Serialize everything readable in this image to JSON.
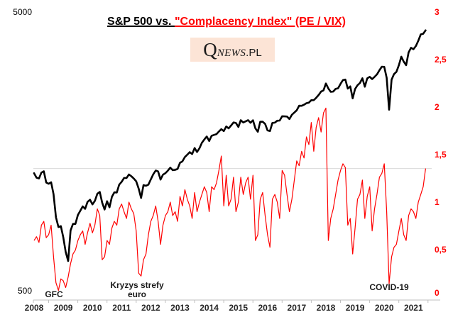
{
  "title": {
    "black_part": "S&P 500 vs. ",
    "red_part": "\"Complacency Index\" (PE / VIX)"
  },
  "logo": {
    "q": "Q",
    "news": "NEWS",
    "pl": ".PL"
  },
  "colors": {
    "sp500_line": "#000000",
    "complacency_line": "#FF0000",
    "title_red": "#FF0000",
    "right_axis_labels": "#FF0000",
    "gridline": "#D9D9D9",
    "axis_line": "#BFBFBF",
    "logo_bg": "#FCE4D6"
  },
  "chart_data": {
    "type": "line",
    "title": "S&P 500 vs. \"Complacency Index\" (PE / VIX)",
    "x_axis": {
      "start_year": 2008,
      "step_months": 1,
      "tick_labels": [
        "2008",
        "2009",
        "2010",
        "2011",
        "2012",
        "2013",
        "2014",
        "2015",
        "2016",
        "2017",
        "2018",
        "2019",
        "2020",
        "2021"
      ]
    },
    "left_axis": {
      "scale": "log",
      "range": [
        500,
        5000
      ],
      "tick_labels": [
        "5000",
        "500"
      ],
      "series": "S&P 500"
    },
    "right_axis": {
      "scale": "linear",
      "range": [
        0,
        3
      ],
      "tick_labels": [
        "3",
        "2,5",
        "2",
        "1,5",
        "1",
        "0,5",
        "0"
      ],
      "series": "Complacency Index (PE / VIX)"
    },
    "reference_line": {
      "axis": "right",
      "value": 1.37
    },
    "grid": "single horizontal reference line only",
    "legend": "none",
    "series": [
      {
        "name": "S&P 500",
        "axis": "left",
        "color": "#000000",
        "values": [
          1378,
          1330,
          1322,
          1385,
          1400,
          1280,
          1267,
          1282,
          1166,
          969,
          896,
          903,
          826,
          735,
          683,
          872,
          919,
          919,
          987,
          1021,
          1057,
          1036,
          1096,
          1115,
          1074,
          1104,
          1169,
          1187,
          1089,
          1031,
          1102,
          1049,
          1141,
          1183,
          1181,
          1258,
          1286,
          1327,
          1326,
          1364,
          1345,
          1321,
          1292,
          1219,
          1131,
          1253,
          1247,
          1258,
          1312,
          1366,
          1408,
          1398,
          1310,
          1362,
          1379,
          1407,
          1441,
          1412,
          1416,
          1426,
          1498,
          1515,
          1569,
          1598,
          1631,
          1606,
          1686,
          1633,
          1682,
          1757,
          1806,
          1848,
          1783,
          1859,
          1872,
          1884,
          1924,
          1960,
          1931,
          2003,
          1972,
          2018,
          2068,
          2059,
          1995,
          2105,
          2068,
          2086,
          2107,
          2063,
          2104,
          1972,
          1920,
          2079,
          2080,
          2044,
          1940,
          1932,
          2060,
          2065,
          2097,
          2099,
          2174,
          2171,
          2168,
          2126,
          2199,
          2239,
          2279,
          2364,
          2363,
          2384,
          2412,
          2423,
          2470,
          2472,
          2519,
          2575,
          2648,
          2674,
          2824,
          2714,
          2641,
          2648,
          2705,
          2718,
          2816,
          2902,
          2914,
          2712,
          2760,
          2507,
          2704,
          2784,
          2834,
          2946,
          2752,
          2942,
          2980,
          2926,
          2977,
          3038,
          3141,
          3231,
          3226,
          2954,
          2290,
          2912,
          3044,
          3100,
          3271,
          3500,
          3363,
          3270,
          3622,
          3756,
          3714,
          3811,
          3973,
          4181,
          4204,
          4320
        ]
      },
      {
        "name": "Complacency Index (PE / VIX)",
        "axis": "right",
        "color": "#FF0000",
        "values": [
          0.62,
          0.66,
          0.6,
          0.78,
          0.82,
          0.65,
          0.68,
          0.78,
          0.45,
          0.18,
          0.1,
          0.22,
          0.2,
          0.13,
          0.24,
          0.38,
          0.48,
          0.52,
          0.62,
          0.68,
          0.72,
          0.58,
          0.7,
          0.8,
          0.7,
          0.78,
          0.95,
          0.88,
          0.42,
          0.45,
          0.62,
          0.58,
          0.75,
          0.82,
          0.78,
          0.95,
          1.0,
          0.92,
          0.85,
          1.02,
          0.95,
          0.9,
          0.72,
          0.28,
          0.25,
          0.42,
          0.48,
          0.68,
          0.82,
          0.88,
          0.98,
          0.82,
          0.58,
          0.78,
          0.88,
          0.92,
          1.02,
          0.88,
          0.92,
          0.82,
          1.08,
          0.98,
          1.15,
          1.05,
          0.98,
          0.85,
          1.12,
          0.92,
          1.02,
          1.1,
          1.18,
          1.12,
          0.92,
          1.18,
          1.15,
          1.22,
          1.35,
          1.5,
          0.98,
          1.3,
          0.98,
          1.05,
          1.28,
          0.92,
          1.02,
          1.28,
          1.1,
          1.22,
          1.28,
          1.05,
          1.3,
          0.62,
          0.68,
          1.05,
          1.12,
          0.88,
          0.68,
          0.55,
          1.05,
          1.1,
          1.02,
          0.85,
          1.35,
          1.3,
          1.1,
          0.92,
          1.05,
          1.25,
          1.45,
          1.4,
          1.55,
          1.48,
          1.7,
          1.62,
          1.85,
          1.55,
          1.8,
          1.9,
          1.75,
          1.95,
          2.0,
          0.62,
          0.85,
          0.95,
          1.1,
          1.25,
          1.35,
          1.42,
          1.38,
          0.78,
          0.85,
          0.48,
          0.75,
          1.05,
          1.1,
          1.25,
          0.85,
          1.08,
          1.18,
          0.72,
          0.95,
          1.1,
          1.28,
          1.32,
          1.42,
          0.92,
          0.17,
          0.45,
          0.55,
          0.58,
          0.72,
          0.85,
          0.68,
          0.62,
          0.88,
          0.95,
          0.92,
          0.85,
          1.02,
          1.1,
          1.18,
          1.37
        ]
      }
    ],
    "annotations": [
      {
        "text": "GFC",
        "x_year": 2008.7
      },
      {
        "text": "Kryzys strefy euro",
        "x_year": 2011.5
      },
      {
        "text": "COVID-19",
        "x_year": 2020.2
      }
    ]
  }
}
